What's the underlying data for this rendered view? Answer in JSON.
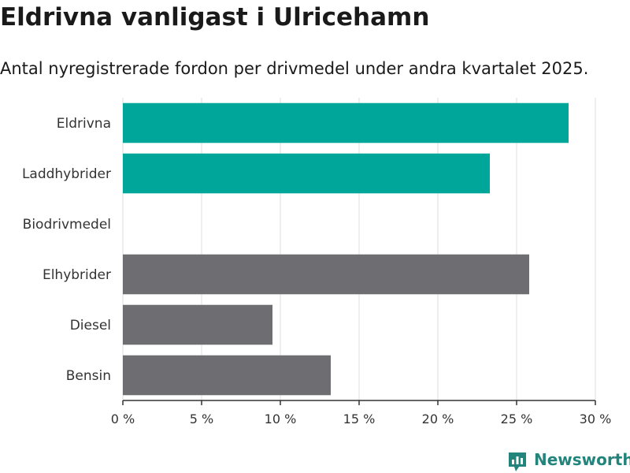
{
  "title": "Eldrivna vanligast i Ulricehamn",
  "subtitle": "Antal nyregistrerade fordon per drivmedel under andra kvartalet 2025.",
  "brand": {
    "name": "Newsworthy",
    "icon": "newsworthy-chart-logo-icon",
    "color": "#23847c"
  },
  "colors": {
    "highlight": "#00a69a",
    "default": "#6e6d72",
    "grid": "#dddddd",
    "axis": "#333333"
  },
  "chart_data": {
    "type": "bar",
    "orientation": "horizontal",
    "title": "Eldrivna vanligast i Ulricehamn",
    "subtitle": "Antal nyregistrerade fordon per drivmedel under andra kvartalet 2025.",
    "categories": [
      "Eldrivna",
      "Laddhybrider",
      "Biodrivmedel",
      "Elhybrider",
      "Diesel",
      "Bensin"
    ],
    "values": [
      28.3,
      23.3,
      0,
      25.8,
      9.5,
      13.2
    ],
    "highlighted": [
      true,
      true,
      false,
      false,
      false,
      false
    ],
    "unit": "%",
    "xlim": [
      0,
      30
    ],
    "xticks": [
      0,
      5,
      10,
      15,
      20,
      25,
      30
    ],
    "xtick_labels": [
      "0 %",
      "5 %",
      "10 %",
      "15 %",
      "20 %",
      "25 %",
      "30 %"
    ],
    "xlabel": "",
    "ylabel": "",
    "grid": true,
    "legend": "none"
  }
}
